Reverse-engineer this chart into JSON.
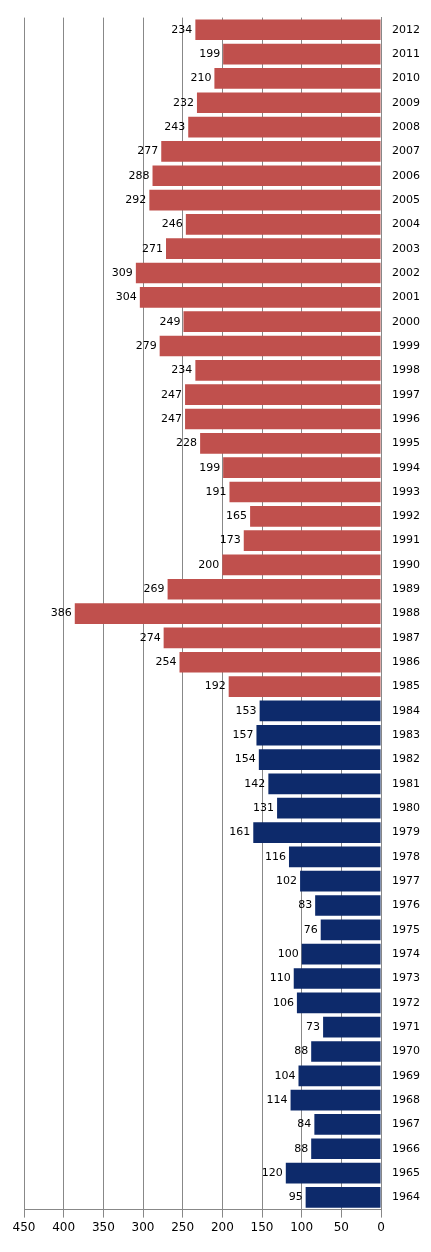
{
  "chart_data": {
    "type": "bar",
    "orientation": "horizontal",
    "categories": [
      "2012",
      "2011",
      "2010",
      "2009",
      "2008",
      "2007",
      "2006",
      "2005",
      "2004",
      "2003",
      "2002",
      "2001",
      "2000",
      "1999",
      "1998",
      "1997",
      "1996",
      "1995",
      "1994",
      "1993",
      "1992",
      "1991",
      "1990",
      "1989",
      "1988",
      "1987",
      "1986",
      "1985",
      "1984",
      "1983",
      "1982",
      "1981",
      "1980",
      "1979",
      "1978",
      "1977",
      "1976",
      "1975",
      "1974",
      "1973",
      "1972",
      "1971",
      "1970",
      "1969",
      "1968",
      "1967",
      "1966",
      "1965",
      "1964"
    ],
    "values": [
      234,
      199,
      210,
      232,
      243,
      277,
      288,
      292,
      246,
      271,
      309,
      304,
      249,
      279,
      234,
      247,
      247,
      228,
      199,
      191,
      165,
      173,
      200,
      269,
      386,
      274,
      254,
      192,
      153,
      157,
      154,
      142,
      131,
      161,
      116,
      102,
      83,
      76,
      100,
      110,
      106,
      73,
      88,
      104,
      114,
      84,
      88,
      120,
      95
    ],
    "colors": [
      "#c0504d",
      "#c0504d",
      "#c0504d",
      "#c0504d",
      "#c0504d",
      "#c0504d",
      "#c0504d",
      "#c0504d",
      "#c0504d",
      "#c0504d",
      "#c0504d",
      "#c0504d",
      "#c0504d",
      "#c0504d",
      "#c0504d",
      "#c0504d",
      "#c0504d",
      "#c0504d",
      "#c0504d",
      "#c0504d",
      "#c0504d",
      "#c0504d",
      "#c0504d",
      "#c0504d",
      "#c0504d",
      "#c0504d",
      "#c0504d",
      "#c0504d",
      "#0d2a6b",
      "#0d2a6b",
      "#0d2a6b",
      "#0d2a6b",
      "#0d2a6b",
      "#0d2a6b",
      "#0d2a6b",
      "#0d2a6b",
      "#0d2a6b",
      "#0d2a6b",
      "#0d2a6b",
      "#0d2a6b",
      "#0d2a6b",
      "#0d2a6b",
      "#0d2a6b",
      "#0d2a6b",
      "#0d2a6b",
      "#0d2a6b",
      "#0d2a6b",
      "#0d2a6b",
      "#0d2a6b"
    ],
    "xlim": [
      450,
      0
    ],
    "xticks": [
      0,
      50,
      100,
      150,
      200,
      250,
      300,
      350,
      400,
      450
    ],
    "grid": "x",
    "data_labels": true,
    "legend": false
  }
}
